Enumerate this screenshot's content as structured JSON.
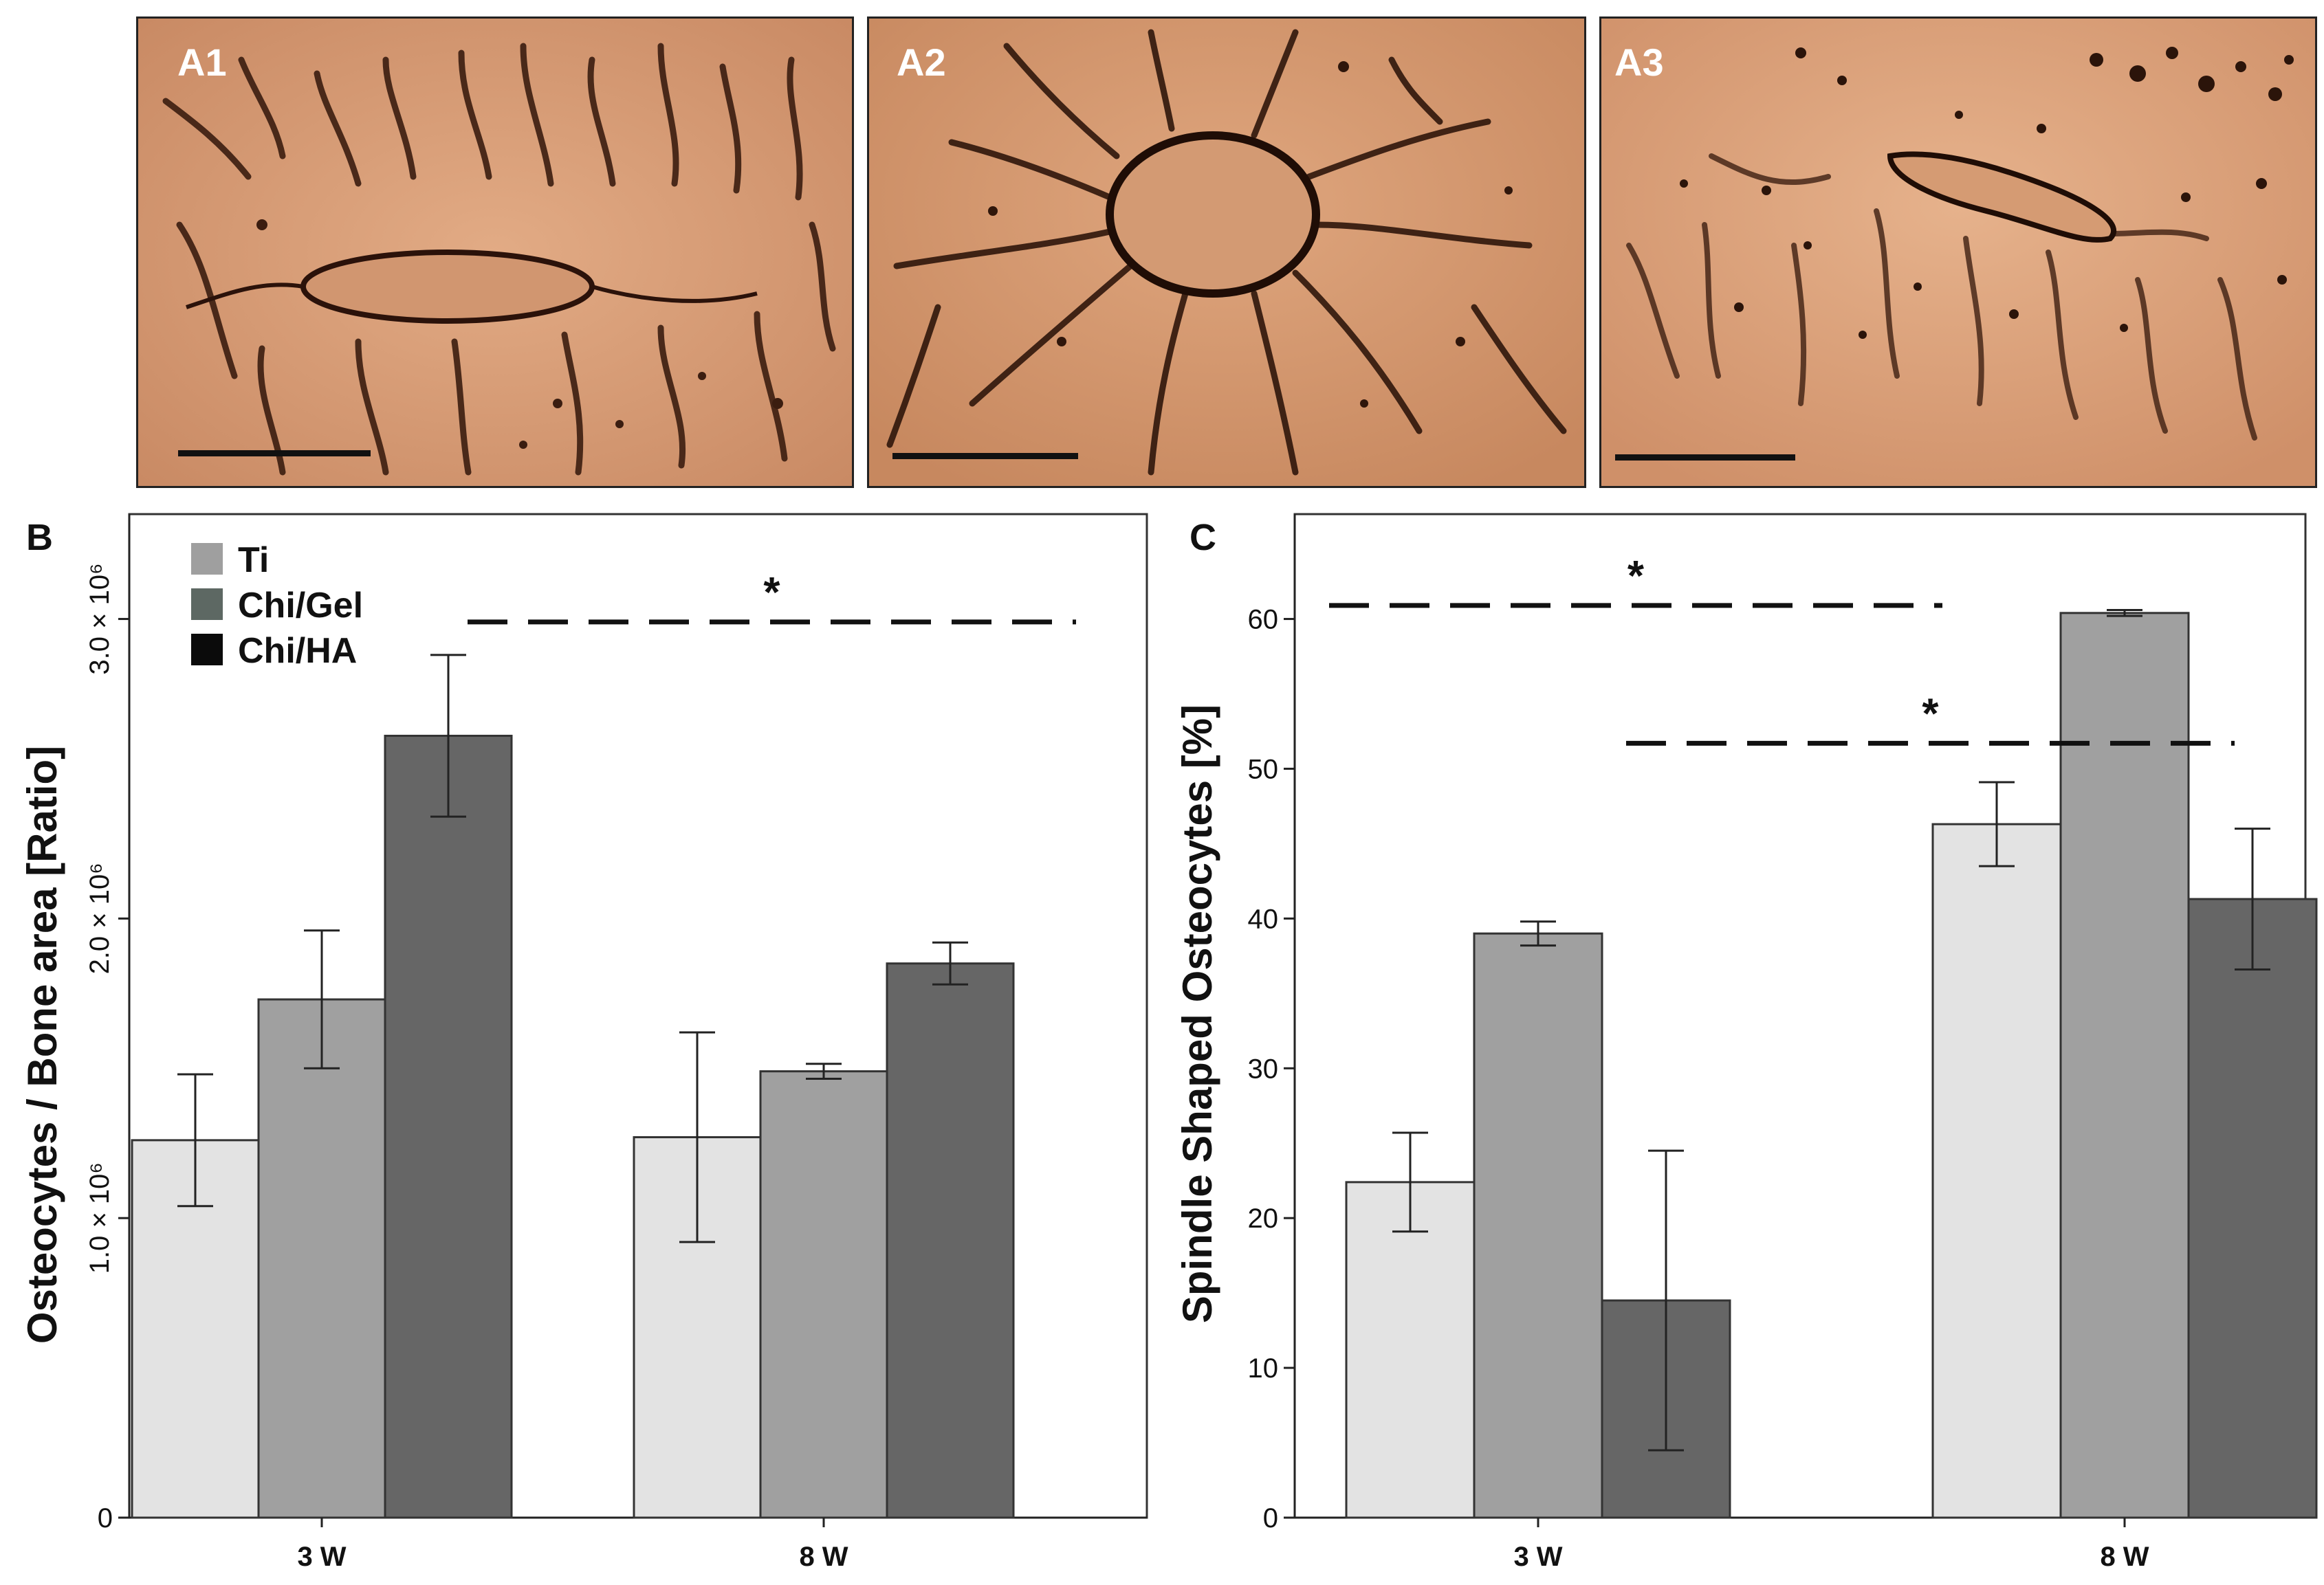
{
  "figure_panels": {
    "A1": "A1",
    "A2": "A2",
    "A3": "A3",
    "B": "B",
    "C": "C"
  },
  "colors": {
    "Ti": "#e3e3e3",
    "Chi/Gel": "#a0a0a0",
    "Chi/HA": "#666666",
    "micro_bg": "#d59a73",
    "micro_dark": "#3b1d10"
  },
  "legend": {
    "entries": [
      {
        "label": "Ti",
        "swatch": "#9f9f9f"
      },
      {
        "label": "Chi/Gel",
        "swatch": "#5d6863"
      },
      {
        "label": "Chi/HA",
        "swatch": "#0b0b0b"
      }
    ]
  },
  "chart_data": [
    {
      "panel": "B",
      "type": "bar",
      "title": "",
      "xlabel": "",
      "ylabel": "Osteocytes / Bone area [Ratio]",
      "categories": [
        "3 W",
        "8 W"
      ],
      "ylim": [
        0,
        3350000
      ],
      "yticks": [
        0,
        1000000,
        2000000,
        3000000
      ],
      "ytick_labels": [
        "0",
        "1.0 × 10⁶",
        "2.0 × 10⁶",
        "3.0 × 10⁶"
      ],
      "series": [
        {
          "name": "Ti",
          "values": [
            1260000,
            1270000
          ],
          "errors": [
            220000,
            350000
          ]
        },
        {
          "name": "Chi/Gel",
          "values": [
            1730000,
            1490000
          ],
          "errors": [
            230000,
            25000
          ]
        },
        {
          "name": "Chi/HA",
          "values": [
            2610000,
            1850000
          ],
          "errors": [
            270000,
            70000
          ]
        }
      ],
      "significance": [
        {
          "label": "*",
          "y": 2990000,
          "from_category": 0,
          "from_series": 2,
          "to_category": 1,
          "to_series": 2
        }
      ]
    },
    {
      "panel": "C",
      "type": "bar",
      "title": "",
      "xlabel": "",
      "ylabel": "Spindle Shaped Osteocytes [%]",
      "categories": [
        "3 W",
        "8 W"
      ],
      "ylim": [
        0,
        67
      ],
      "yticks": [
        0,
        10,
        20,
        30,
        40,
        50,
        60
      ],
      "ytick_labels": [
        "0",
        "10",
        "20",
        "30",
        "40",
        "50",
        "60"
      ],
      "series": [
        {
          "name": "Ti",
          "values": [
            22.4,
            46.3
          ],
          "errors": [
            3.3,
            2.8
          ]
        },
        {
          "name": "Chi/Gel",
          "values": [
            39.0,
            60.4
          ],
          "errors": [
            0.8,
            0.2
          ]
        },
        {
          "name": "Chi/HA",
          "values": [
            14.5,
            41.3
          ],
          "errors": [
            10.0,
            4.7
          ]
        }
      ],
      "significance": [
        {
          "label": "*",
          "y": 60.9,
          "from_category": 0,
          "from_series": 0,
          "to_category": 1,
          "to_series": 0
        },
        {
          "label": "*",
          "y": 51.7,
          "from_category": 0,
          "from_series": 2,
          "to_category": 1,
          "to_series": 2
        }
      ]
    }
  ]
}
